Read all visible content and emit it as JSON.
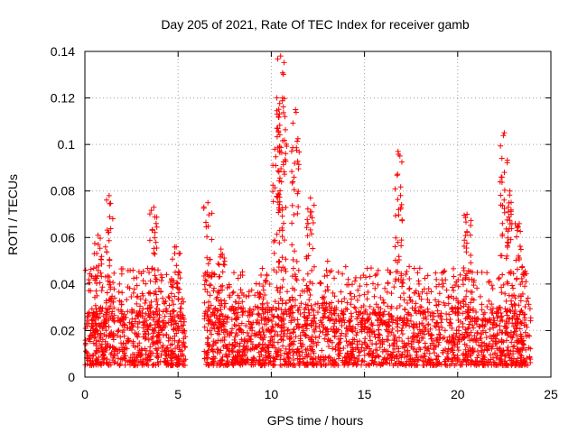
{
  "chart_data": {
    "type": "scatter",
    "title": "Day 205 of 2021, Rate Of TEC Index for receiver gamb",
    "xlabel": "GPS time / hours",
    "ylabel": "ROTI / TECUs",
    "xlim": [
      0,
      25
    ],
    "ylim": [
      0,
      0.14
    ],
    "x_ticks": [
      0,
      5,
      10,
      15,
      20,
      25
    ],
    "y_ticks": [
      0,
      0.02,
      0.04,
      0.06,
      0.08,
      0.1,
      0.12,
      0.14
    ],
    "x_tick_labels": [
      "0",
      "5",
      "10",
      "15",
      "20",
      "25"
    ],
    "y_tick_labels": [
      "0",
      "0.02",
      "0.04",
      "0.06",
      "0.08",
      "0.1",
      "0.12",
      "0.14"
    ],
    "grid": true,
    "marker": "+",
    "color": "#ff0000",
    "data_gap_hours": [
      5.4,
      6.4
    ],
    "baseline_band": [
      0.005,
      0.025
    ],
    "peaks": [
      {
        "x": 0.7,
        "y": 0.061
      },
      {
        "x": 1.3,
        "y": 0.078
      },
      {
        "x": 3.7,
        "y": 0.073
      },
      {
        "x": 4.9,
        "y": 0.056
      },
      {
        "x": 6.6,
        "y": 0.075
      },
      {
        "x": 7.3,
        "y": 0.055
      },
      {
        "x": 10.3,
        "y": 0.107
      },
      {
        "x": 10.5,
        "y": 0.138
      },
      {
        "x": 10.6,
        "y": 0.12
      },
      {
        "x": 11.3,
        "y": 0.115
      },
      {
        "x": 12.1,
        "y": 0.077
      },
      {
        "x": 16.8,
        "y": 0.097
      },
      {
        "x": 20.5,
        "y": 0.07
      },
      {
        "x": 22.5,
        "y": 0.105
      },
      {
        "x": 22.8,
        "y": 0.08
      },
      {
        "x": 23.3,
        "y": 0.066
      }
    ]
  }
}
